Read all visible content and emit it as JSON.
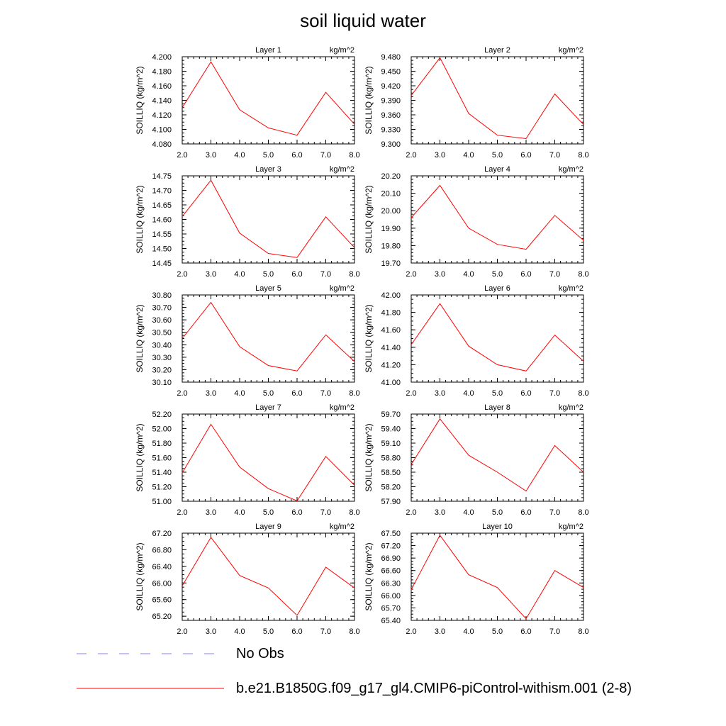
{
  "figure": {
    "title": "soil liquid water",
    "legend": [
      {
        "label": "No Obs",
        "color": "#8080ff",
        "dashed": true
      },
      {
        "label": "b.e21.B1850G.f09_g17_gl4.CMIP6-piControl-withism.001 (2-8)",
        "color": "#ff0000",
        "dashed": false
      }
    ]
  },
  "chart_data": [
    {
      "type": "line",
      "title": "Layer 1",
      "units": "kg/m^2",
      "ylabel": "SOILLIQ  (kg/m^2)",
      "x": [
        2,
        3,
        4,
        5,
        6,
        7,
        8
      ],
      "xticks": [
        "2.0",
        "3.0",
        "4.0",
        "5.0",
        "6.0",
        "7.0",
        "8.0"
      ],
      "xlim": [
        2,
        8
      ],
      "ylim": [
        4.08,
        4.2
      ],
      "yticks": [
        "4.080",
        "4.100",
        "4.120",
        "4.140",
        "4.160",
        "4.180",
        "4.200"
      ],
      "yminor": 0.005,
      "series": [
        {
          "color": "#ff0000",
          "values": [
            4.13,
            4.193,
            4.127,
            4.102,
            4.092,
            4.151,
            4.107
          ]
        }
      ]
    },
    {
      "type": "line",
      "title": "Layer 2",
      "units": "kg/m^2",
      "ylabel": "SOILLIQ  (kg/m^2)",
      "x": [
        2,
        3,
        4,
        5,
        6,
        7,
        8
      ],
      "xticks": [
        "2.0",
        "3.0",
        "4.0",
        "5.0",
        "6.0",
        "7.0",
        "8.0"
      ],
      "xlim": [
        2,
        8
      ],
      "ylim": [
        9.3,
        9.48
      ],
      "yticks": [
        "9.300",
        "9.330",
        "9.360",
        "9.390",
        "9.420",
        "9.450",
        "9.480"
      ],
      "yminor": 0.0075,
      "series": [
        {
          "color": "#ff0000",
          "values": [
            9.4,
            9.478,
            9.363,
            9.318,
            9.311,
            9.403,
            9.34
          ]
        }
      ]
    },
    {
      "type": "line",
      "title": "Layer 3",
      "units": "kg/m^2",
      "ylabel": "SOILLIQ  (kg/m^2)",
      "x": [
        2,
        3,
        4,
        5,
        6,
        7,
        8
      ],
      "xticks": [
        "2.0",
        "3.0",
        "4.0",
        "5.0",
        "6.0",
        "7.0",
        "8.0"
      ],
      "xlim": [
        2,
        8
      ],
      "ylim": [
        14.45,
        14.75
      ],
      "yticks": [
        "14.45",
        "14.50",
        "14.55",
        "14.60",
        "14.65",
        "14.70",
        "14.75"
      ],
      "yminor": 0.0125,
      "series": [
        {
          "color": "#ff0000",
          "values": [
            14.61,
            14.735,
            14.553,
            14.483,
            14.469,
            14.609,
            14.503
          ]
        }
      ]
    },
    {
      "type": "line",
      "title": "Layer 4",
      "units": "kg/m^2",
      "ylabel": "SOILLIQ  (kg/m^2)",
      "x": [
        2,
        3,
        4,
        5,
        6,
        7,
        8
      ],
      "xticks": [
        "2.0",
        "3.0",
        "4.0",
        "5.0",
        "6.0",
        "7.0",
        "8.0"
      ],
      "xlim": [
        2,
        8
      ],
      "ylim": [
        19.7,
        20.2
      ],
      "yticks": [
        "19.70",
        "19.80",
        "19.90",
        "20.00",
        "20.10",
        "20.20"
      ],
      "yminor": 0.02,
      "series": [
        {
          "color": "#ff0000",
          "values": [
            19.96,
            20.145,
            19.9,
            19.807,
            19.779,
            19.973,
            19.83
          ]
        }
      ]
    },
    {
      "type": "line",
      "title": "Layer 5",
      "units": "kg/m^2",
      "ylabel": "SOILLIQ  (kg/m^2)",
      "x": [
        2,
        3,
        4,
        5,
        6,
        7,
        8
      ],
      "xticks": [
        "2.0",
        "3.0",
        "4.0",
        "5.0",
        "6.0",
        "7.0",
        "8.0"
      ],
      "xlim": [
        2,
        8
      ],
      "ylim": [
        30.1,
        30.8
      ],
      "yticks": [
        "30.10",
        "30.20",
        "30.30",
        "30.40",
        "30.50",
        "30.60",
        "30.70",
        "30.80"
      ],
      "yminor": 0.025,
      "series": [
        {
          "color": "#ff0000",
          "values": [
            30.45,
            30.74,
            30.385,
            30.233,
            30.19,
            30.48,
            30.265
          ]
        }
      ]
    },
    {
      "type": "line",
      "title": "Layer 6",
      "units": "kg/m^2",
      "ylabel": "SOILLIQ  (kg/m^2)",
      "x": [
        2,
        3,
        4,
        5,
        6,
        7,
        8
      ],
      "xticks": [
        "2.0",
        "3.0",
        "4.0",
        "5.0",
        "6.0",
        "7.0",
        "8.0"
      ],
      "xlim": [
        2,
        8
      ],
      "ylim": [
        41.0,
        42.0
      ],
      "yticks": [
        "41.00",
        "41.20",
        "41.40",
        "41.60",
        "41.80",
        "42.00"
      ],
      "yminor": 0.05,
      "series": [
        {
          "color": "#ff0000",
          "values": [
            41.43,
            41.9,
            41.413,
            41.2,
            41.128,
            41.54,
            41.24
          ]
        }
      ]
    },
    {
      "type": "line",
      "title": "Layer 7",
      "units": "kg/m^2",
      "ylabel": "SOILLIQ  (kg/m^2)",
      "x": [
        2,
        3,
        4,
        5,
        6,
        7,
        8
      ],
      "xticks": [
        "2.0",
        "3.0",
        "4.0",
        "5.0",
        "6.0",
        "7.0",
        "8.0"
      ],
      "xlim": [
        2,
        8
      ],
      "ylim": [
        51.0,
        52.2
      ],
      "yticks": [
        "51.00",
        "51.20",
        "51.40",
        "51.60",
        "51.80",
        "52.00",
        "52.20"
      ],
      "yminor": 0.05,
      "series": [
        {
          "color": "#ff0000",
          "values": [
            51.39,
            52.06,
            51.47,
            51.174,
            51.005,
            51.617,
            51.22
          ]
        }
      ]
    },
    {
      "type": "line",
      "title": "Layer 8",
      "units": "kg/m^2",
      "ylabel": "SOILLIQ  (kg/m^2)",
      "x": [
        2,
        3,
        4,
        5,
        6,
        7,
        8
      ],
      "xticks": [
        "2.0",
        "3.0",
        "4.0",
        "5.0",
        "6.0",
        "7.0",
        "8.0"
      ],
      "xlim": [
        2,
        8
      ],
      "ylim": [
        57.9,
        59.7
      ],
      "yticks": [
        "57.90",
        "58.20",
        "58.50",
        "58.80",
        "59.10",
        "59.40",
        "59.70"
      ],
      "yminor": 0.075,
      "series": [
        {
          "color": "#ff0000",
          "values": [
            58.66,
            59.6,
            58.85,
            58.5,
            58.11,
            59.05,
            58.5
          ]
        }
      ]
    },
    {
      "type": "line",
      "title": "Layer 9",
      "units": "kg/m^2",
      "ylabel": "SOILLIQ  (kg/m^2)",
      "x": [
        2,
        3,
        4,
        5,
        6,
        7,
        8
      ],
      "xticks": [
        "2.0",
        "3.0",
        "4.0",
        "5.0",
        "6.0",
        "7.0",
        "8.0"
      ],
      "xlim": [
        2,
        8
      ],
      "ylim": [
        65.1,
        67.2
      ],
      "yticks": [
        "65.20",
        "65.60",
        "66.00",
        "66.40",
        "66.80",
        "67.20"
      ],
      "yminor": 0.1,
      "series": [
        {
          "color": "#ff0000",
          "values": [
            65.93,
            67.1,
            66.18,
            65.88,
            65.22,
            66.38,
            65.88
          ]
        }
      ]
    },
    {
      "type": "line",
      "title": "Layer 10",
      "units": "kg/m^2",
      "ylabel": "SOILLIQ  (kg/m^2)",
      "x": [
        2,
        3,
        4,
        5,
        6,
        7,
        8
      ],
      "xticks": [
        "2.0",
        "3.0",
        "4.0",
        "5.0",
        "6.0",
        "7.0",
        "8.0"
      ],
      "xlim": [
        2,
        8
      ],
      "ylim": [
        65.4,
        67.5
      ],
      "yticks": [
        "65.40",
        "65.70",
        "66.00",
        "66.30",
        "66.60",
        "66.90",
        "67.20",
        "67.50"
      ],
      "yminor": 0.075,
      "series": [
        {
          "color": "#ff0000",
          "values": [
            66.14,
            67.45,
            66.5,
            66.19,
            65.44,
            66.6,
            66.19
          ]
        }
      ]
    }
  ]
}
